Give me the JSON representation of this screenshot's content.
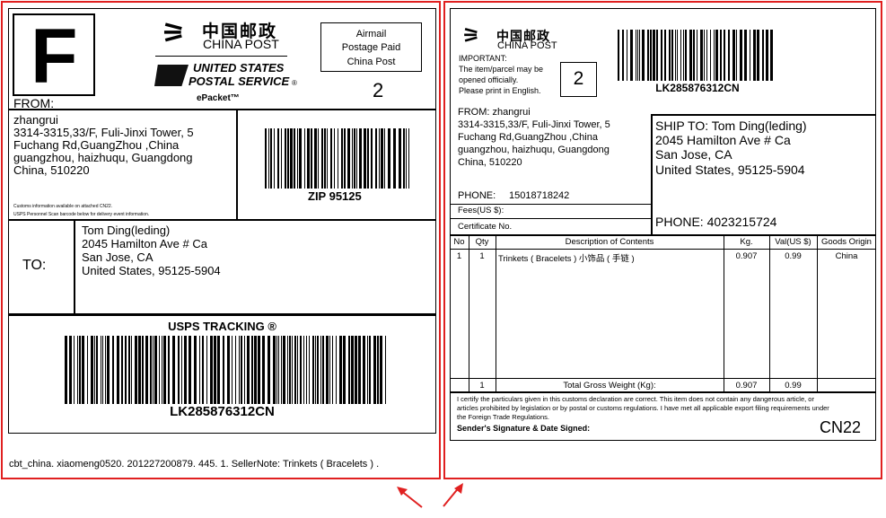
{
  "label": {
    "zone_letter": "F",
    "china_post_cn": "中国邮政",
    "china_post_en": "CHINA POST",
    "usps_line1": "UNITED STATES",
    "usps_line2": "POSTAL SERVICE",
    "usps_reg": "®",
    "epacket": "ePacket™",
    "postage_box": [
      "Airmail",
      "Postage Paid",
      "China Post"
    ],
    "count": "2",
    "from_label": "FROM:",
    "sender": [
      "zhangrui",
      "3314-3315,33/F, Fuli-Jinxi Tower, 5",
      "Fuchang Rd,GuangZhou ,China",
      "guangzhou, haizhuqu, Guangdong",
      "China, 510220"
    ],
    "customs_note_1": "Customs information available on attached CN22.",
    "customs_note_2": "USPS Personnel Scan barcode below for delivery event information.",
    "zip_label": "ZIP 95125",
    "to_label": "TO:",
    "recipient": [
      "Tom Ding(leding)",
      "2045 Hamilton Ave # Ca",
      "San Jose, CA",
      "United States, 95125-5904"
    ],
    "tracking_title": "USPS TRACKING ®",
    "tracking_number": "LK285876312CN",
    "footer_note": "cbt_china. xiaomeng0520. 201227200879. 445. 1. SellerNote: Trinkets ( Bracelets ) ."
  },
  "cn22": {
    "china_post_cn": "中国邮政",
    "china_post_en": "CHINA POST",
    "important": [
      "IMPORTANT:",
      "The item/parcel may be",
      "opened officially.",
      "Please print in English."
    ],
    "count": "2",
    "tracking_number": "LK285876312CN",
    "from": [
      "FROM: zhangrui",
      "3314-3315,33/F, Fuli-Jinxi Tower, 5",
      "Fuchang Rd,GuangZhou ,China",
      "guangzhou, haizhuqu, Guangdong",
      "China, 510220"
    ],
    "from_phone_label": "PHONE:",
    "from_phone": "15018718242",
    "fees_label": "Fees(US $):",
    "certificate_label": "Certificate No.",
    "ship_to": [
      "SHIP TO: Tom Ding(leding)",
      "2045 Hamilton Ave # Ca",
      "San Jose, CA",
      "United States, 95125-5904"
    ],
    "to_phone": "PHONE: 4023215724",
    "table": {
      "headers": [
        "No",
        "Qty",
        "Description of Contents",
        "Kg.",
        "Val(US $)",
        "Goods Origin"
      ],
      "rows": [
        [
          "1",
          "1",
          "Trinkets ( Bracelets )  小饰品 ( 手链 )",
          "0.907",
          "0.99",
          "China"
        ]
      ],
      "total": [
        "",
        "1",
        "Total Gross Weight (Kg):",
        "0.907",
        "0.99",
        ""
      ]
    },
    "certification": [
      "I certify the particulars given in this customs declaration are correct. This item does not contain any dangerous article, or",
      "articles prohibited by legislation or by postal or customs regulations. I have met all applicable export filing requirements under",
      "the Foreign Trade Regulations."
    ],
    "signature_label": "Sender's Signature & Date Signed:",
    "form_code": "CN22"
  },
  "colors": {
    "highlight": "#e02020"
  }
}
